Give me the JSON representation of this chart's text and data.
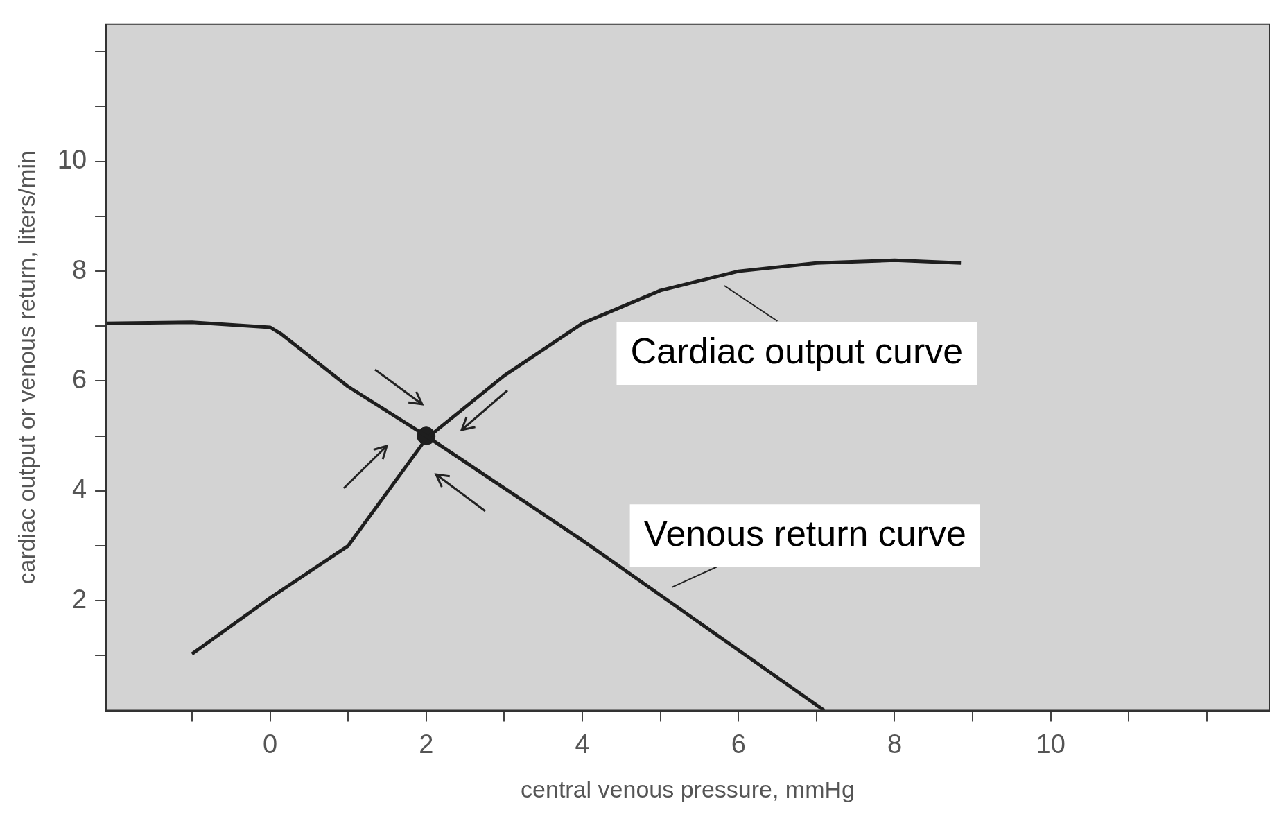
{
  "chart_data": {
    "type": "line",
    "xlabel": "central venous pressure, mmHg",
    "ylabel": "cardiac output or venous return, liters/min",
    "xlim": [
      -2.1,
      12.8
    ],
    "ylim": [
      0,
      12.5
    ],
    "xticks": [
      {
        "value": -1,
        "label": null
      },
      0,
      {
        "value": 1,
        "label": null
      },
      2,
      {
        "value": 3,
        "label": null
      },
      4,
      {
        "value": 5,
        "label": null
      },
      6,
      {
        "value": 7,
        "label": null
      },
      8,
      {
        "value": 9,
        "label": null
      },
      10,
      {
        "value": 11,
        "label": null
      },
      {
        "value": 12,
        "label": null
      }
    ],
    "yticks": [
      {
        "value": 1,
        "label": null
      },
      2,
      {
        "value": 3,
        "label": null
      },
      4,
      {
        "value": 5,
        "label": null
      },
      6,
      {
        "value": 7,
        "label": null
      },
      8,
      {
        "value": 9,
        "label": null
      },
      10,
      {
        "value": 11,
        "label": null
      },
      {
        "value": 12,
        "label": null
      }
    ],
    "legend": false,
    "marker": "none",
    "line_style": "solid",
    "series": [
      {
        "color": "#1e1e1e",
        "x": [
          -2.1,
          -1,
          0,
          0.15,
          1,
          2,
          3,
          4,
          5,
          6,
          7,
          7.1
        ],
        "values": [
          7.05,
          7.07,
          6.98,
          6.85,
          5.9,
          5,
          4.05,
          3.1,
          2.1,
          1.1,
          0.1,
          0
        ]
      },
      {
        "color": "#1e1e1e",
        "x": [
          -1,
          0,
          1,
          2,
          3,
          4,
          5,
          6,
          7,
          8,
          8.85
        ],
        "values": [
          1.03,
          2.05,
          3.0,
          4.95,
          6.1,
          7.05,
          7.65,
          8.0,
          8.15,
          8.2,
          8.15
        ]
      },
      {
        "type": "scatter",
        "marker": "circle",
        "color": "#1e1e1e",
        "x": [
          2
        ],
        "values": [
          5
        ]
      }
    ],
    "annotations": [
      {
        "text": "Cardiac output curve",
        "x": 5.7,
        "y": 7.85
      },
      {
        "text": "Venous return curve",
        "x": 5,
        "y": 2.15
      }
    ]
  }
}
